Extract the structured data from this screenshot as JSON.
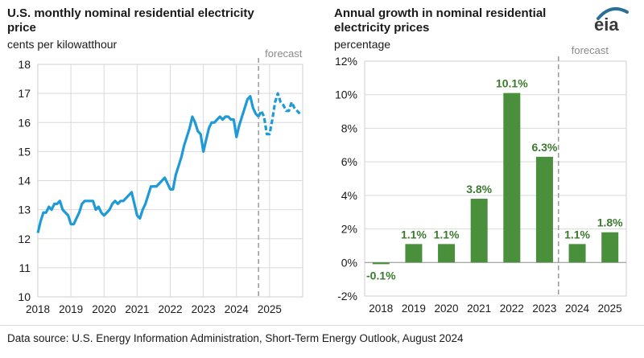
{
  "brand": {
    "logo_text": "eia",
    "brand_color": "#2a6f97"
  },
  "source": "Data source: U.S. Energy Information Administration, Short-Term Energy Outlook, August 2024",
  "colors": {
    "line": "#1e9ad6",
    "bar": "#4a8f3c",
    "label": "#3b7a2f",
    "grid": "#d9d9d9",
    "forecast": "#999999"
  },
  "chart_data": [
    {
      "type": "line",
      "title": "U.S. monthly nominal residential electricity price",
      "ylabel": "cents per kilowatthour",
      "forecast_label": "forecast",
      "ylim": [
        10,
        18
      ],
      "yticks": [
        "10",
        "11",
        "12",
        "13",
        "14",
        "15",
        "16",
        "17",
        "18"
      ],
      "xticks": [
        "2018",
        "2019",
        "2020",
        "2021",
        "2022",
        "2023",
        "2024",
        "2025"
      ],
      "start": "2018-01",
      "forecast_start_index": 80,
      "series": [
        {
          "name": "historical",
          "values": [
            12.2,
            12.6,
            12.9,
            12.9,
            13.1,
            13.0,
            13.2,
            13.2,
            13.3,
            13.0,
            12.9,
            12.8,
            12.5,
            12.5,
            12.7,
            12.9,
            13.2,
            13.3,
            13.3,
            13.3,
            13.3,
            13.0,
            13.1,
            12.9,
            12.8,
            12.9,
            13.0,
            13.2,
            13.3,
            13.2,
            13.3,
            13.3,
            13.4,
            13.5,
            13.6,
            13.2,
            12.8,
            12.7,
            13.0,
            13.2,
            13.5,
            13.8,
            13.8,
            13.8,
            13.9,
            14.0,
            14.1,
            13.9,
            13.7,
            13.7,
            14.2,
            14.5,
            14.8,
            15.2,
            15.5,
            15.8,
            16.2,
            16.0,
            15.7,
            15.6,
            15.0,
            15.4,
            15.8,
            16.0,
            16.0,
            16.1,
            16.2,
            16.1,
            16.2,
            16.2,
            16.1,
            16.1,
            15.5,
            15.9,
            16.2,
            16.5,
            16.8,
            16.9,
            16.5,
            16.3,
            16.2
          ],
          "style": "solid"
        },
        {
          "name": "forecast",
          "values": [
            16.2,
            16.4,
            16.2,
            15.6,
            15.6,
            16.1,
            16.7,
            17.0,
            16.7,
            16.6,
            16.4,
            16.4,
            16.7,
            16.5,
            16.4,
            16.3
          ],
          "style": "dashed"
        }
      ]
    },
    {
      "type": "bar",
      "title": "Annual growth in nominal residential electricity prices",
      "ylabel": "percentage",
      "forecast_label": "forecast",
      "ylim": [
        -2,
        12
      ],
      "yticks": [
        "-2%",
        "0%",
        "2%",
        "4%",
        "6%",
        "8%",
        "10%",
        "12%"
      ],
      "categories": [
        "2018",
        "2019",
        "2020",
        "2021",
        "2022",
        "2023",
        "2024",
        "2025"
      ],
      "values": [
        -0.1,
        1.1,
        1.1,
        3.8,
        10.1,
        6.3,
        1.1,
        1.8
      ],
      "labels": [
        "-0.1%",
        "1.1%",
        "1.1%",
        "3.8%",
        "10.1%",
        "6.3%",
        "1.1%",
        "1.8%"
      ],
      "forecast_start_index": 6
    }
  ]
}
